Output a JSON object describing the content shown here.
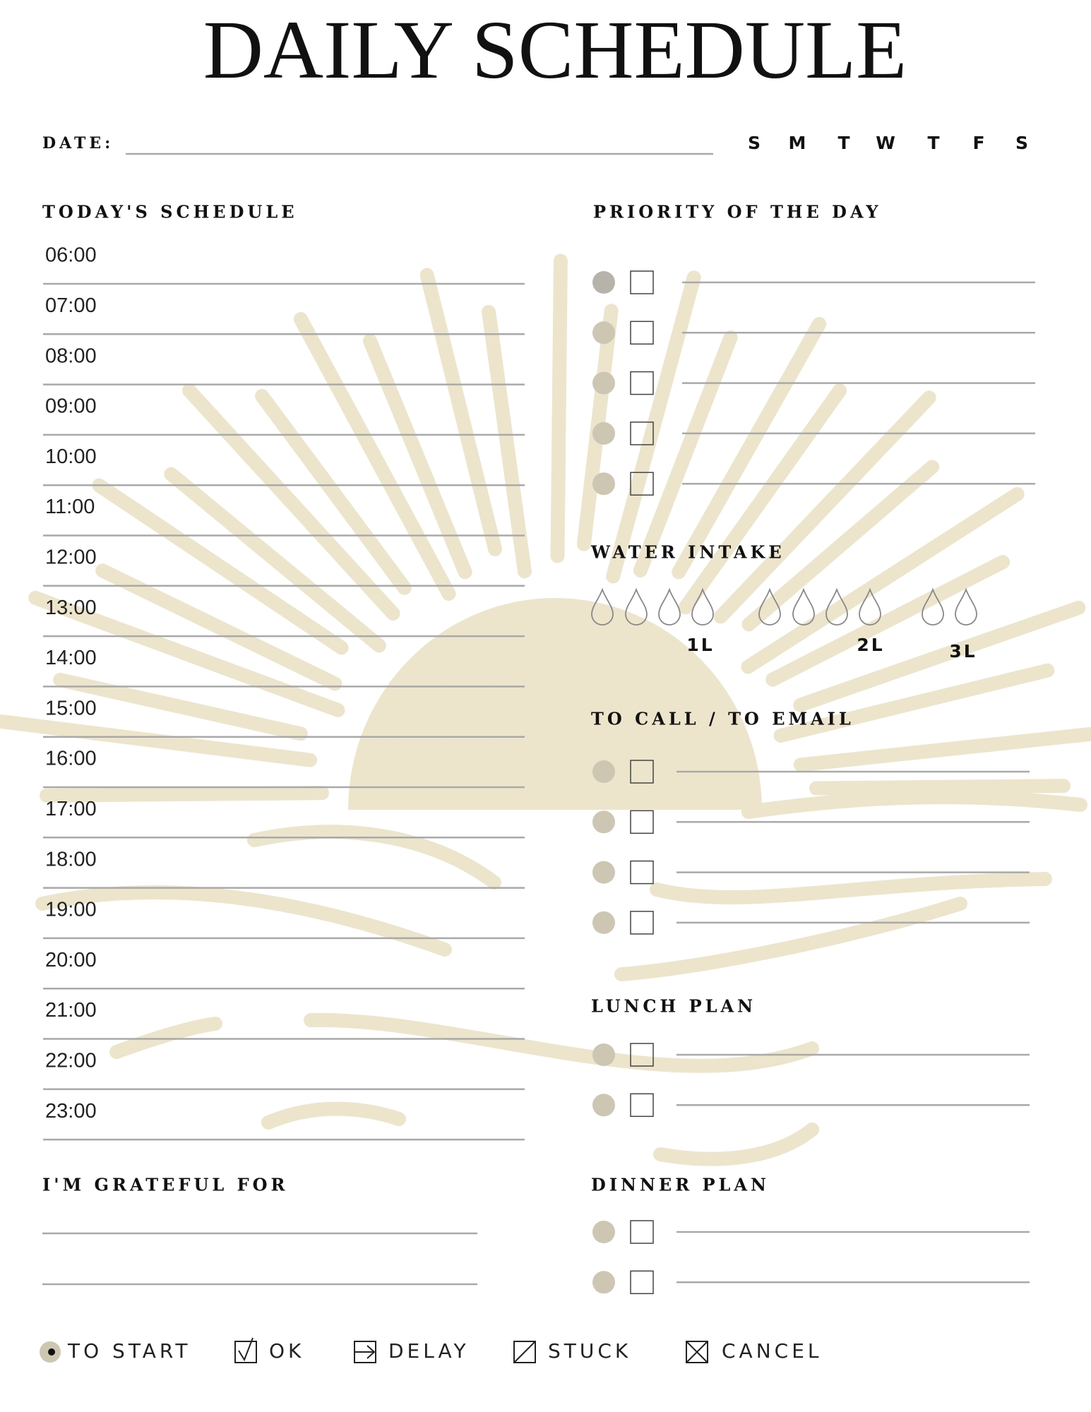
{
  "header": {
    "title": "DAILY SCHEDULE",
    "date_label": "DATE:",
    "weekdays": [
      "S",
      "M",
      "T",
      "W",
      "T",
      "F",
      "S"
    ]
  },
  "schedule": {
    "title": "TODAY'S SCHEDULE",
    "times": [
      "06:00",
      "07:00",
      "08:00",
      "09:00",
      "10:00",
      "11:00",
      "12:00",
      "13:00",
      "14:00",
      "15:00",
      "16:00",
      "17:00",
      "18:00",
      "19:00",
      "20:00",
      "21:00",
      "22:00",
      "23:00"
    ]
  },
  "priority": {
    "title": "PRIORITY OF THE DAY"
  },
  "water": {
    "title": "WATER INTAKE",
    "labels": [
      "1L",
      "2L",
      "3L"
    ]
  },
  "call": {
    "title": "TO CALL / TO EMAIL"
  },
  "lunch": {
    "title": "LUNCH PLAN"
  },
  "dinner": {
    "title": "DINNER PLAN"
  },
  "grateful": {
    "title": "I'M GRATEFUL FOR"
  },
  "legend": [
    "TO START",
    "OK",
    "DELAY",
    "STUCK",
    "CANCEL"
  ]
}
